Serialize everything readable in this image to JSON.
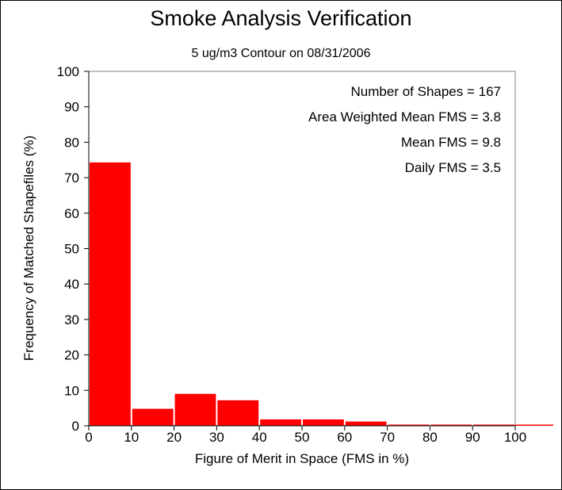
{
  "chart_data": {
    "type": "bar",
    "title": "Smoke Analysis Verification",
    "subtitle": "5 ug/m3 Contour on 08/31/2006",
    "xlabel": "Figure of Merit in Space (FMS in %)",
    "ylabel": "Frequency of Matched Shapefiles (%)",
    "categories": [
      "0-10",
      "10-20",
      "20-30",
      "30-40",
      "40-50",
      "50-60",
      "60-70",
      "70-80",
      "80-90",
      "90-100"
    ],
    "bins": [
      [
        0,
        10
      ],
      [
        10,
        20
      ],
      [
        20,
        30
      ],
      [
        30,
        40
      ],
      [
        40,
        50
      ],
      [
        50,
        60
      ],
      [
        60,
        70
      ],
      [
        70,
        80
      ],
      [
        80,
        90
      ],
      [
        90,
        100
      ]
    ],
    "values": [
      74.3,
      4.8,
      9.0,
      7.2,
      1.8,
      1.8,
      1.2,
      0.1,
      0.1,
      0.1
    ],
    "xlim": [
      0,
      100
    ],
    "ylim": [
      0,
      100
    ],
    "xticks": [
      "0",
      "10",
      "20",
      "30",
      "40",
      "50",
      "60",
      "70",
      "80",
      "90",
      "100"
    ],
    "yticks": [
      "0",
      "10",
      "20",
      "30",
      "40",
      "50",
      "60",
      "70",
      "80",
      "90",
      "100"
    ],
    "bar_color": "#ff0000",
    "grid": false,
    "annotations": [
      "Number of Shapes = 167",
      "Area Weighted Mean FMS = 3.8",
      "Mean FMS = 9.8",
      "Daily FMS = 3.5"
    ]
  }
}
